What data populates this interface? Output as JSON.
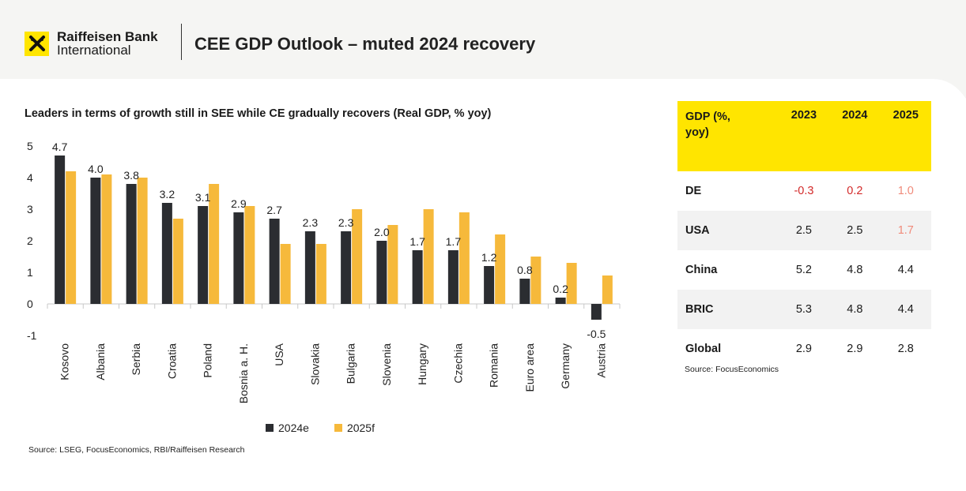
{
  "header": {
    "brand_line1": "Raiffeisen Bank",
    "brand_line2": "International",
    "title": "CEE GDP Outlook – muted 2024 recovery"
  },
  "colors": {
    "bar_2024": "#2b2d31",
    "bar_2025": "#f6b93b",
    "header_yellow": "#ffe500",
    "negative": "#d32a2a",
    "forecast_highlight": "#f08a7a"
  },
  "chart_data": {
    "type": "bar",
    "title": "Leaders in terms of growth still in SEE while CE gradually recovers (Real GDP, % yoy)",
    "categories": [
      "Kosovo",
      "Albania",
      "Serbia",
      "Croatia",
      "Poland",
      "Bosnia a. H.",
      "USA",
      "Slovakia",
      "Bulgaria",
      "Slovenia",
      "Hungary",
      "Czechia",
      "Romania",
      "Euro area",
      "Germany",
      "Austria"
    ],
    "series": [
      {
        "name": "2024e",
        "values": [
          4.7,
          4.0,
          3.8,
          3.2,
          3.1,
          2.9,
          2.7,
          2.3,
          2.3,
          2.0,
          1.7,
          1.7,
          1.2,
          0.8,
          0.2,
          -0.5
        ]
      },
      {
        "name": "2025f",
        "values": [
          4.2,
          4.1,
          4.0,
          2.7,
          3.8,
          3.1,
          1.9,
          1.9,
          3.0,
          2.5,
          3.0,
          2.9,
          2.2,
          1.5,
          1.3,
          0.9
        ]
      }
    ],
    "data_labels": [
      "4.7",
      "4.0",
      "3.8",
      "3.2",
      "3.1",
      "2.9",
      "2.7",
      "2.3",
      "2.3",
      "2.0",
      "1.7",
      "1.7",
      "1.2",
      "0.8",
      "0.2",
      "-0.5"
    ],
    "y_ticks": [
      "5",
      "4",
      "3",
      "2",
      "1",
      "0",
      "-1"
    ],
    "ylim": [
      -1,
      5
    ],
    "legend_position": "bottom",
    "grid": false,
    "source": "Source: LSEG, FocusEconomics, RBI/Raiffeisen Research"
  },
  "table": {
    "header_label": "GDP (%, yoy)",
    "header_line1": "GDP (%,",
    "header_line2": "yoy)",
    "years": [
      "2023",
      "2024",
      "2025"
    ],
    "rows": [
      {
        "label": "DE",
        "values": [
          "-0.3",
          "0.2",
          "1.0"
        ]
      },
      {
        "label": "USA",
        "values": [
          "2.5",
          "2.5",
          "1.7"
        ]
      },
      {
        "label": "China",
        "values": [
          "5.2",
          "4.8",
          "4.4"
        ]
      },
      {
        "label": "BRIC",
        "values": [
          "5.3",
          "4.8",
          "4.4"
        ]
      },
      {
        "label": "Global",
        "values": [
          "2.9",
          "2.9",
          "2.8"
        ]
      }
    ],
    "source": "Source: FocusEconomics"
  }
}
